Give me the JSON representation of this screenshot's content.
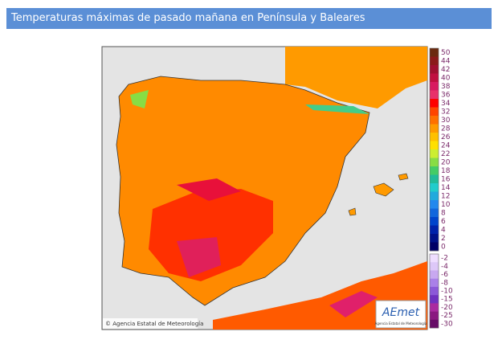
{
  "header": {
    "title": "Temperaturas máximas de pasado mañana en Península y Baleares"
  },
  "map": {
    "credit": "© Agencia Estatal de Meteorología",
    "logo": "AEmet",
    "logo_subtitle": "Agencia Estatal de Meteorología"
  },
  "legend": {
    "positive": [
      {
        "label": "50",
        "color": "#6b2a10"
      },
      {
        "label": "44",
        "color": "#8b1a1a"
      },
      {
        "label": "42",
        "color": "#a01030"
      },
      {
        "label": "40",
        "color": "#c01040"
      },
      {
        "label": "38",
        "color": "#d81b60"
      },
      {
        "label": "36",
        "color": "#e8306a"
      },
      {
        "label": "34",
        "color": "#ff0000"
      },
      {
        "label": "32",
        "color": "#ff4500"
      },
      {
        "label": "30",
        "color": "#ff7000"
      },
      {
        "label": "28",
        "color": "#ff9a00"
      },
      {
        "label": "26",
        "color": "#ffc000"
      },
      {
        "label": "24",
        "color": "#ffe000"
      },
      {
        "label": "22",
        "color": "#ccee30"
      },
      {
        "label": "20",
        "color": "#88dd44"
      },
      {
        "label": "18",
        "color": "#44cc66"
      },
      {
        "label": "16",
        "color": "#22bb99"
      },
      {
        "label": "14",
        "color": "#22cccc"
      },
      {
        "label": "12",
        "color": "#22aadd"
      },
      {
        "label": "10",
        "color": "#2288ee"
      },
      {
        "label": "8",
        "color": "#1166dd"
      },
      {
        "label": "6",
        "color": "#0044cc"
      },
      {
        "label": "4",
        "color": "#0022aa"
      },
      {
        "label": "2",
        "color": "#001188"
      },
      {
        "label": "0",
        "color": "#000066"
      }
    ],
    "negative": [
      {
        "label": "-2",
        "color": "#eeddff"
      },
      {
        "label": "-4",
        "color": "#ddc8f8"
      },
      {
        "label": "-6",
        "color": "#c8a8f0"
      },
      {
        "label": "-8",
        "color": "#aa80e8"
      },
      {
        "label": "-10",
        "color": "#8c58d8"
      },
      {
        "label": "-15",
        "color": "#7030c0"
      },
      {
        "label": "-20",
        "color": "#aa2aa0"
      },
      {
        "label": "-25",
        "color": "#8a1880"
      },
      {
        "label": "-30",
        "color": "#660c66"
      }
    ]
  }
}
